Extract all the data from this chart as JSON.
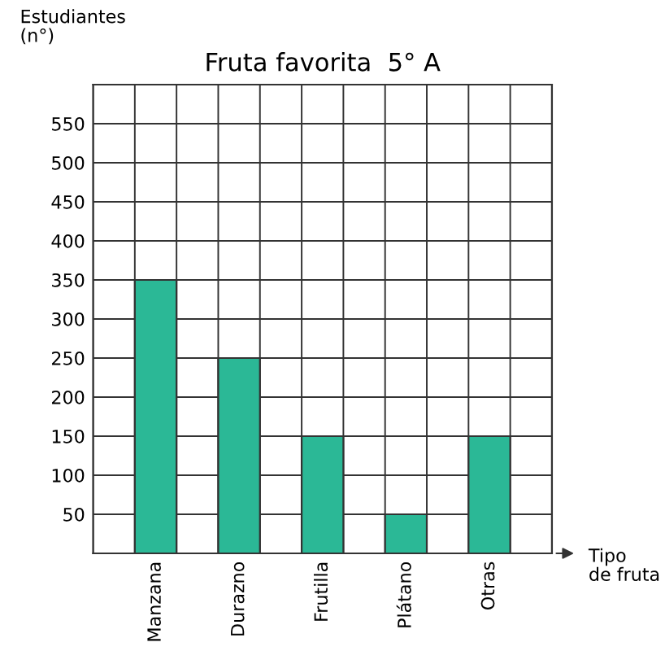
{
  "chart_data": {
    "type": "bar",
    "title": "Fruta favorita  5° A",
    "xlabel": "Tipo\nde fruta",
    "ylabel": "Estudiantes\n(n°)",
    "categories": [
      "Manzana",
      "Durazno",
      "Frutilla",
      "Plátano",
      "Otras"
    ],
    "values": [
      350,
      250,
      150,
      50,
      150
    ],
    "color": "#2bb896",
    "ylim": [
      0,
      600
    ],
    "yticks": [
      50,
      100,
      150,
      200,
      250,
      300,
      350,
      400,
      450,
      500,
      550
    ],
    "grid": true
  }
}
